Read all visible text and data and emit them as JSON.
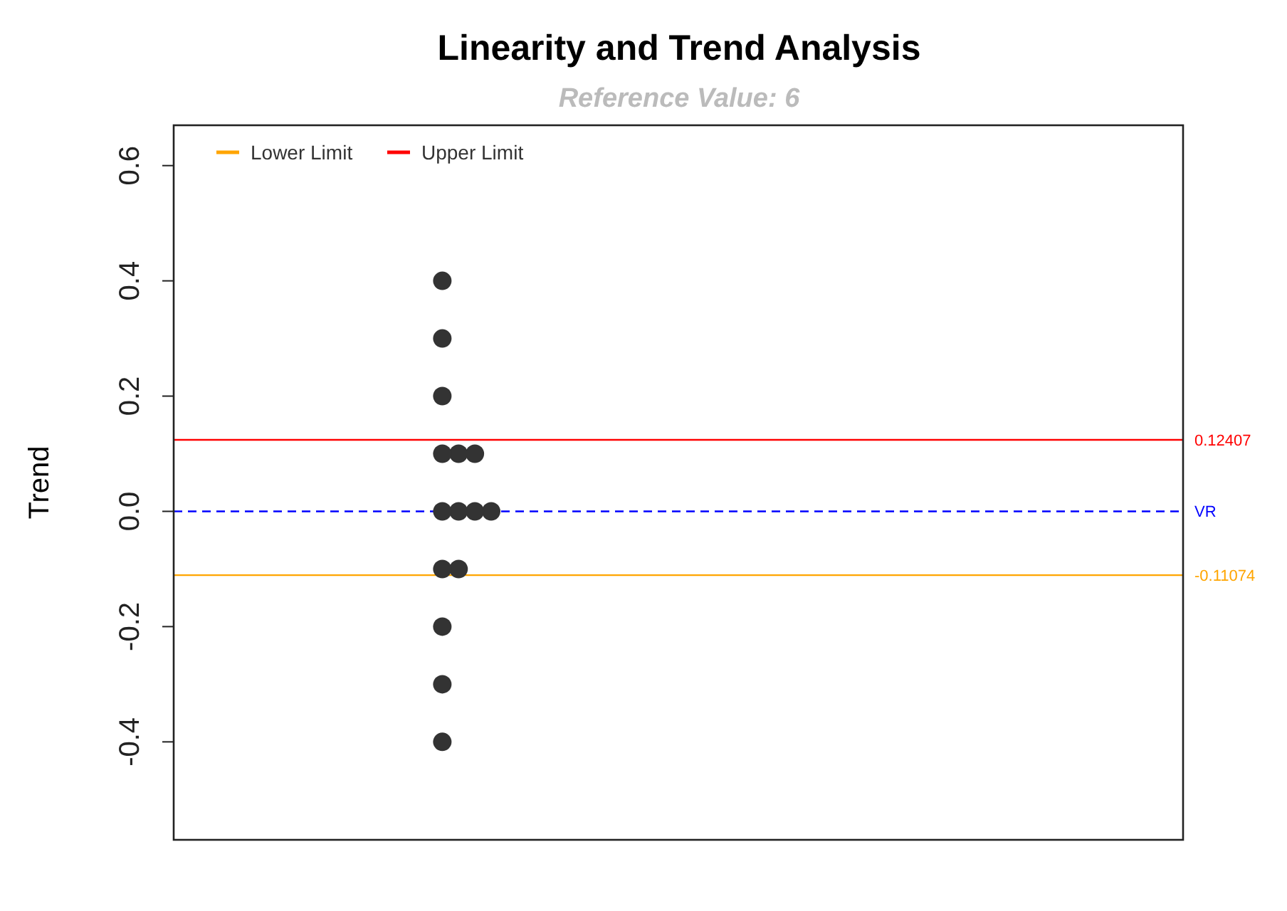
{
  "chart_data": {
    "type": "scatter",
    "title": "Linearity and Trend Analysis",
    "subtitle": "Reference Value: 6",
    "ylabel": "Trend",
    "categories": [
      null,
      null,
      null,
      null,
      null,
      null,
      null,
      null,
      null,
      null,
      null,
      null,
      null,
      null,
      null,
      null,
      null,
      null,
      null,
      null,
      null,
      null,
      null,
      null,
      null,
      null,
      null,
      null,
      null,
      null,
      null,
      null,
      null,
      null,
      null,
      null,
      null,
      null,
      null,
      null,
      null,
      null,
      null,
      null,
      null,
      null,
      null,
      null,
      null,
      null,
      null,
      null,
      null,
      null,
      null,
      null,
      null,
      null,
      null,
      null,
      null,
      null
    ],
    "ylim": [
      -0.57,
      0.67
    ],
    "yticks": [
      -0.4,
      -0.2,
      {
        "value": 0,
        "label": "0.0"
      },
      0.2,
      0.4,
      0.6
    ],
    "grid": false,
    "marker": "circle",
    "legend": "top left",
    "series": [
      {
        "color": "#333333",
        "values": [
          null,
          null,
          null,
          null,
          null,
          null,
          null,
          null,
          null,
          null,
          null,
          null,
          null,
          null,
          null,
          null,
          0.4,
          0.1,
          0.1,
          0,
          null,
          null,
          null,
          null,
          null,
          null,
          null,
          null,
          null,
          null,
          null,
          null,
          null,
          null,
          null,
          null,
          null,
          null,
          null,
          null,
          null,
          null,
          null,
          null,
          null,
          null,
          null,
          null,
          null,
          null,
          null,
          null,
          null,
          null,
          null,
          null,
          null,
          null,
          null,
          null,
          null,
          null
        ]
      },
      {
        "color": "#333333",
        "values": [
          null,
          null,
          null,
          null,
          null,
          null,
          null,
          null,
          null,
          null,
          null,
          null,
          null,
          null,
          null,
          null,
          0.3,
          0,
          0,
          null,
          null,
          null,
          null,
          null,
          null,
          null,
          null,
          null,
          null,
          null,
          null,
          null,
          null,
          null,
          null,
          null,
          null,
          null,
          null,
          null,
          null,
          null,
          null,
          null,
          null,
          null,
          null,
          null,
          null,
          null,
          null,
          null,
          null,
          null,
          null,
          null,
          null,
          null,
          null,
          null,
          null,
          null
        ]
      },
      {
        "color": "#333333",
        "values": [
          null,
          null,
          null,
          null,
          null,
          null,
          null,
          null,
          null,
          null,
          null,
          null,
          null,
          null,
          null,
          null,
          0.2,
          -0.1,
          null,
          null,
          null,
          null,
          null,
          null,
          null,
          null,
          null,
          null,
          null,
          null,
          null,
          null,
          null,
          null,
          null,
          null,
          null,
          null,
          null,
          null,
          null,
          null,
          null,
          null,
          null,
          null,
          null,
          null,
          null,
          null,
          null,
          null,
          null,
          null,
          null,
          null,
          null,
          null,
          null,
          null,
          null,
          null
        ]
      },
      {
        "color": "#333333",
        "values": [
          null,
          null,
          null,
          null,
          null,
          null,
          null,
          null,
          null,
          null,
          null,
          null,
          null,
          null,
          null,
          null,
          0.1,
          null,
          null,
          null,
          null,
          null,
          null,
          null,
          null,
          null,
          null,
          null,
          null,
          null,
          null,
          null,
          null,
          null,
          null,
          null,
          null,
          null,
          null,
          null,
          null,
          null,
          null,
          null,
          null,
          null,
          null,
          null,
          null,
          null,
          null,
          null,
          null,
          null,
          null,
          null,
          null,
          null,
          null,
          null,
          null,
          null
        ]
      },
      {
        "color": "#333333",
        "values": [
          null,
          null,
          null,
          null,
          null,
          null,
          null,
          null,
          null,
          null,
          null,
          null,
          null,
          null,
          null,
          null,
          0,
          null,
          null,
          null,
          null,
          null,
          null,
          null,
          null,
          null,
          null,
          null,
          null,
          null,
          null,
          null,
          null,
          null,
          null,
          null,
          null,
          null,
          null,
          null,
          null,
          null,
          null,
          null,
          null,
          null,
          null,
          null,
          null,
          null,
          null,
          null,
          null,
          null,
          null,
          null,
          null,
          null,
          null,
          null,
          null,
          null
        ]
      },
      {
        "color": "#333333",
        "values": [
          null,
          null,
          null,
          null,
          null,
          null,
          null,
          null,
          null,
          null,
          null,
          null,
          null,
          null,
          null,
          null,
          -0.1,
          null,
          null,
          null,
          null,
          null,
          null,
          null,
          null,
          null,
          null,
          null,
          null,
          null,
          null,
          null,
          null,
          null,
          null,
          null,
          null,
          null,
          null,
          null,
          null,
          null,
          null,
          null,
          null,
          null,
          null,
          null,
          null,
          null,
          null,
          null,
          null,
          null,
          null,
          null,
          null,
          null,
          null,
          null,
          null,
          null
        ]
      },
      {
        "color": "#333333",
        "values": [
          null,
          null,
          null,
          null,
          null,
          null,
          null,
          null,
          null,
          null,
          null,
          null,
          null,
          null,
          null,
          null,
          -0.2,
          null,
          null,
          null,
          null,
          null,
          null,
          null,
          null,
          null,
          null,
          null,
          null,
          null,
          null,
          null,
          null,
          null,
          null,
          null,
          null,
          null,
          null,
          null,
          null,
          null,
          null,
          null,
          null,
          null,
          null,
          null,
          null,
          null,
          null,
          null,
          null,
          null,
          null,
          null,
          null,
          null,
          null,
          null,
          null,
          null
        ]
      },
      {
        "color": "#333333",
        "values": [
          null,
          null,
          null,
          null,
          null,
          null,
          null,
          null,
          null,
          null,
          null,
          null,
          null,
          null,
          null,
          null,
          -0.3,
          null,
          null,
          null,
          null,
          null,
          null,
          null,
          null,
          null,
          null,
          null,
          null,
          null,
          null,
          null,
          null,
          null,
          null,
          null,
          null,
          null,
          null,
          null,
          null,
          null,
          null,
          null,
          null,
          null,
          null,
          null,
          null,
          null,
          null,
          null,
          null,
          null,
          null,
          null,
          null,
          null,
          null,
          null,
          null,
          null
        ]
      },
      {
        "color": "#333333",
        "values": [
          null,
          null,
          null,
          null,
          null,
          null,
          null,
          null,
          null,
          null,
          null,
          null,
          null,
          null,
          null,
          null,
          -0.4,
          null,
          null,
          null,
          null,
          null,
          null,
          null,
          null,
          null,
          null,
          null,
          null,
          null,
          null,
          null,
          null,
          null,
          null,
          null,
          null,
          null,
          null,
          null,
          null,
          null,
          null,
          null,
          null,
          null,
          null,
          null,
          null,
          null,
          null,
          null,
          null,
          null,
          null,
          null,
          null,
          null,
          null,
          null,
          null,
          null
        ]
      }
    ],
    "ref_lines": [
      {
        "axis": "y",
        "value": -0.11074,
        "label": "Lower Limit",
        "color": "#ffa500"
      },
      {
        "axis": "y",
        "value": 0.12407,
        "label": "Upper Limit",
        "color": "#ff0000"
      },
      {
        "axis": "y",
        "value": 0,
        "color": "#0000ff",
        "line_style": "dashed"
      }
    ],
    "annotations": [
      "-0.11074",
      "0.12407",
      "VR"
    ]
  }
}
